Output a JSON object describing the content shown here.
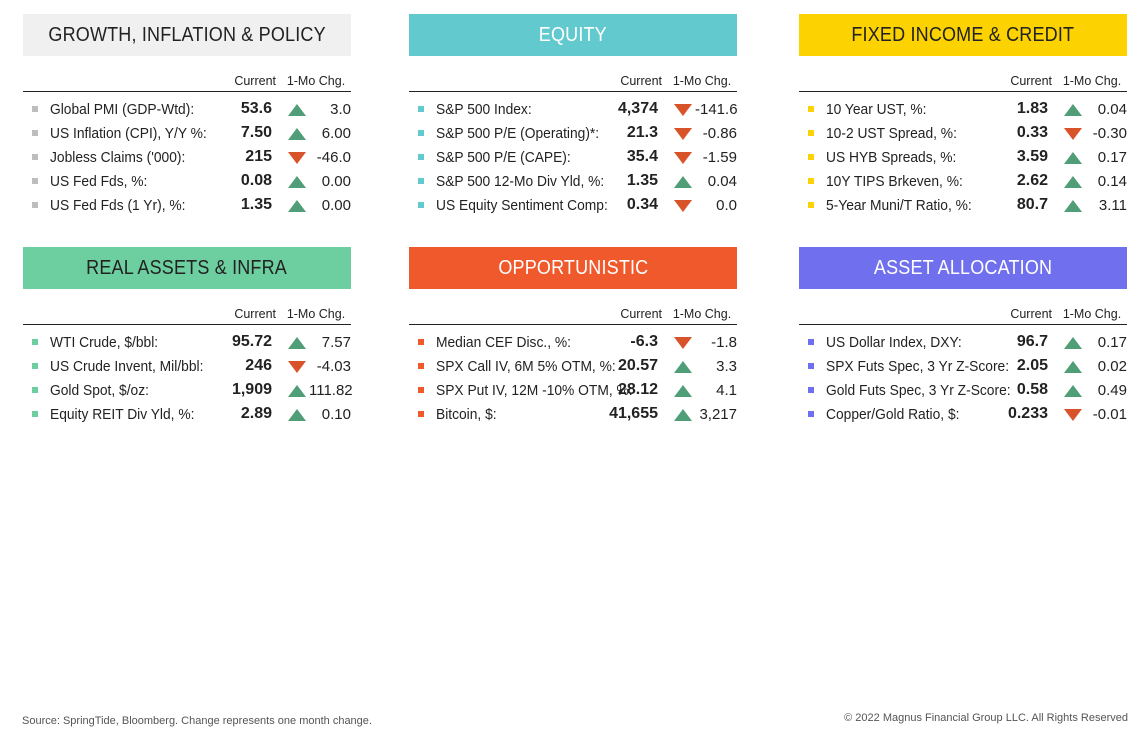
{
  "col_current": "Current",
  "col_change": "1-Mo Chg.",
  "panels": [
    {
      "title": "GROWTH, INFLATION & POLICY",
      "header_bg": "#f0f0f0",
      "bullet_color": "#bdbdbd",
      "rows": [
        {
          "label": "Global PMI (GDP-Wtd):",
          "current": "53.6",
          "dir": "up",
          "change": "3.0"
        },
        {
          "label": "US Inflation (CPI), Y/Y %:",
          "current": "7.50",
          "dir": "up",
          "change": "6.00"
        },
        {
          "label": "Jobless Claims ('000):",
          "current": "215",
          "dir": "down",
          "change": "-46.0"
        },
        {
          "label": "US Fed Fds, %:",
          "current": "0.08",
          "dir": "up",
          "change": "0.00"
        },
        {
          "label": "US Fed Fds (1 Yr), %:",
          "current": "1.35",
          "dir": "up",
          "change": "0.00"
        }
      ]
    },
    {
      "title": "EQUITY",
      "header_bg": "#62c9cf",
      "bullet_color": "#62c9cf",
      "rows": [
        {
          "label": "S&P 500 Index:",
          "current": "4,374",
          "dir": "down",
          "change": "-141.6"
        },
        {
          "label": "S&P 500 P/E (Operating)*:",
          "current": "21.3",
          "dir": "down",
          "change": "-0.86"
        },
        {
          "label": "S&P 500 P/E (CAPE):",
          "current": "35.4",
          "dir": "down",
          "change": "-1.59"
        },
        {
          "label": "S&P 500 12-Mo Div Yld, %:",
          "current": "1.35",
          "dir": "up",
          "change": "0.04"
        },
        {
          "label": "US Equity Sentiment Comp:",
          "current": "0.34",
          "dir": "down",
          "change": "0.0"
        }
      ]
    },
    {
      "title": "FIXED INCOME & CREDIT",
      "header_bg": "#fcd200",
      "bullet_color": "#fcd200",
      "rows": [
        {
          "label": "10 Year UST, %:",
          "current": "1.83",
          "dir": "up",
          "change": "0.04"
        },
        {
          "label": "10-2 UST Spread, %:",
          "current": "0.33",
          "dir": "down",
          "change": "-0.30"
        },
        {
          "label": "US HYB Spreads, %:",
          "current": "3.59",
          "dir": "up",
          "change": "0.17"
        },
        {
          "label": "10Y TIPS Brkeven, %:",
          "current": "2.62",
          "dir": "up",
          "change": "0.14"
        },
        {
          "label": "5-Year Muni/T Ratio, %:",
          "current": "80.7",
          "dir": "up",
          "change": "3.11"
        }
      ]
    },
    {
      "title": "REAL ASSETS & INFRA",
      "header_bg": "#6dcf9f",
      "bullet_color": "#6dcf9f",
      "rows": [
        {
          "label": "WTI Crude, $/bbl:",
          "current": "95.72",
          "dir": "up",
          "change": "7.57"
        },
        {
          "label": "US Crude Invent, Mil/bbl:",
          "current": "246",
          "dir": "down",
          "change": "-4.03"
        },
        {
          "label": "Gold Spot, $/oz:",
          "current": "1,909",
          "dir": "up",
          "change": "111.82"
        },
        {
          "label": "Equity REIT Div Yld, %:",
          "current": "2.89",
          "dir": "up",
          "change": "0.10"
        }
      ]
    },
    {
      "title": "OPPORTUNISTIC",
      "header_bg": "#f0592b",
      "bullet_color": "#f0592b",
      "rows": [
        {
          "label": "Median CEF Disc., %:",
          "current": "-6.3",
          "dir": "down",
          "change": "-1.8"
        },
        {
          "label": "SPX Call IV, 6M 5% OTM, %:",
          "current": "20.57",
          "dir": "up",
          "change": "3.3"
        },
        {
          "label": "SPX Put IV, 12M -10% OTM, %:",
          "current": "28.12",
          "dir": "up",
          "change": "4.1"
        },
        {
          "label": "Bitcoin, $:",
          "current": "41,655",
          "dir": "up",
          "change": "3,217"
        }
      ]
    },
    {
      "title": "ASSET ALLOCATION",
      "header_bg": "#7070ef",
      "bullet_color": "#7070ef",
      "rows": [
        {
          "label": "US Dollar Index, DXY:",
          "current": "96.7",
          "dir": "up",
          "change": "0.17"
        },
        {
          "label": "SPX Futs Spec, 3 Yr Z-Score:",
          "current": "2.05",
          "dir": "up",
          "change": "0.02"
        },
        {
          "label": "Gold Futs Spec, 3 Yr Z-Score:",
          "current": "0.58",
          "dir": "up",
          "change": "0.49"
        },
        {
          "label": "Copper/Gold Ratio, $:",
          "current": "0.233",
          "dir": "down",
          "change": "-0.01"
        }
      ]
    }
  ],
  "colors": {
    "up": "#4f9e78",
    "down": "#d9532a",
    "white_title": "#ffffff",
    "dark_title": "#222222"
  },
  "footer": {
    "source": "Source: SpringTide, Bloomberg. Change represents one month change.",
    "copyright": "© 2022 Magnus Financial Group LLC. All Rights Reserved"
  }
}
